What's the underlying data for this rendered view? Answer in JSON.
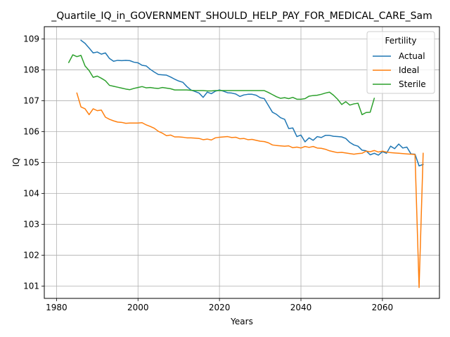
{
  "chart_data": {
    "type": "line",
    "title": "_Quartile_IQ_in_GOVERNMENT_SHOULD_HELP_PAY_FOR_MEDICAL_CARE_Sam",
    "xlabel": "Years",
    "ylabel": "IQ",
    "xlim": [
      1977,
      2074
    ],
    "ylim": [
      100.6,
      109.4
    ],
    "xticks": [
      1980,
      2000,
      2020,
      2040,
      2060
    ],
    "yticks": [
      101,
      102,
      103,
      104,
      105,
      106,
      107,
      108,
      109
    ],
    "grid": true,
    "legend": {
      "title": "Fertility",
      "placement": "top-right"
    },
    "series": [
      {
        "name": "Actual",
        "color": "#1f77b4",
        "points": [
          [
            1986,
            108.96
          ],
          [
            1987,
            108.86
          ],
          [
            1988,
            108.71
          ],
          [
            1989,
            108.55
          ],
          [
            1990,
            108.58
          ],
          [
            1991,
            108.51
          ],
          [
            1992,
            108.55
          ],
          [
            1993,
            108.37
          ],
          [
            1994,
            108.28
          ],
          [
            1995,
            108.31
          ],
          [
            1996,
            108.3
          ],
          [
            1997,
            108.31
          ],
          [
            1998,
            108.3
          ],
          [
            1999,
            108.25
          ],
          [
            2000,
            108.23
          ],
          [
            2001,
            108.15
          ],
          [
            2002,
            108.13
          ],
          [
            2003,
            108.02
          ],
          [
            2004,
            107.93
          ],
          [
            2005,
            107.85
          ],
          [
            2006,
            107.84
          ],
          [
            2007,
            107.83
          ],
          [
            2008,
            107.77
          ],
          [
            2009,
            107.7
          ],
          [
            2010,
            107.64
          ],
          [
            2011,
            107.6
          ],
          [
            2012,
            107.46
          ],
          [
            2013,
            107.35
          ],
          [
            2014,
            107.3
          ],
          [
            2015,
            107.25
          ],
          [
            2016,
            107.11
          ],
          [
            2017,
            107.28
          ],
          [
            2018,
            107.23
          ],
          [
            2019,
            107.31
          ],
          [
            2020,
            107.35
          ],
          [
            2021,
            107.31
          ],
          [
            2022,
            107.26
          ],
          [
            2023,
            107.25
          ],
          [
            2024,
            107.22
          ],
          [
            2025,
            107.14
          ],
          [
            2026,
            107.19
          ],
          [
            2027,
            107.21
          ],
          [
            2028,
            107.21
          ],
          [
            2029,
            107.18
          ],
          [
            2030,
            107.1
          ],
          [
            2031,
            107.07
          ],
          [
            2032,
            106.85
          ],
          [
            2033,
            106.63
          ],
          [
            2034,
            106.56
          ],
          [
            2035,
            106.45
          ],
          [
            2036,
            106.4
          ],
          [
            2037,
            106.1
          ],
          [
            2038,
            106.12
          ],
          [
            2039,
            105.84
          ],
          [
            2040,
            105.89
          ],
          [
            2041,
            105.67
          ],
          [
            2042,
            105.8
          ],
          [
            2043,
            105.72
          ],
          [
            2044,
            105.84
          ],
          [
            2045,
            105.81
          ],
          [
            2046,
            105.88
          ],
          [
            2047,
            105.88
          ],
          [
            2048,
            105.85
          ],
          [
            2049,
            105.84
          ],
          [
            2050,
            105.83
          ],
          [
            2051,
            105.78
          ],
          [
            2052,
            105.65
          ],
          [
            2053,
            105.57
          ],
          [
            2054,
            105.53
          ],
          [
            2055,
            105.4
          ],
          [
            2056,
            105.38
          ],
          [
            2057,
            105.25
          ],
          [
            2058,
            105.3
          ],
          [
            2059,
            105.24
          ],
          [
            2060,
            105.35
          ],
          [
            2061,
            105.3
          ],
          [
            2062,
            105.53
          ],
          [
            2063,
            105.45
          ],
          [
            2064,
            105.6
          ],
          [
            2065,
            105.47
          ],
          [
            2066,
            105.5
          ],
          [
            2067,
            105.28
          ],
          [
            2068,
            105.27
          ],
          [
            2069,
            104.89
          ],
          [
            2070,
            104.94
          ]
        ]
      },
      {
        "name": "Ideal",
        "color": "#ff7f0e",
        "points": [
          [
            1985,
            107.25
          ],
          [
            1986,
            106.8
          ],
          [
            1987,
            106.74
          ],
          [
            1988,
            106.55
          ],
          [
            1989,
            106.74
          ],
          [
            1990,
            106.68
          ],
          [
            1991,
            106.7
          ],
          [
            1992,
            106.47
          ],
          [
            1993,
            106.4
          ],
          [
            1994,
            106.35
          ],
          [
            1995,
            106.31
          ],
          [
            1996,
            106.3
          ],
          [
            1997,
            106.27
          ],
          [
            1998,
            106.28
          ],
          [
            1999,
            106.28
          ],
          [
            2000,
            106.28
          ],
          [
            2001,
            106.29
          ],
          [
            2002,
            106.22
          ],
          [
            2003,
            106.17
          ],
          [
            2004,
            106.11
          ],
          [
            2005,
            106.01
          ],
          [
            2006,
            105.95
          ],
          [
            2007,
            105.87
          ],
          [
            2008,
            105.89
          ],
          [
            2009,
            105.83
          ],
          [
            2010,
            105.83
          ],
          [
            2011,
            105.82
          ],
          [
            2012,
            105.8
          ],
          [
            2013,
            105.8
          ],
          [
            2014,
            105.79
          ],
          [
            2015,
            105.78
          ],
          [
            2016,
            105.74
          ],
          [
            2017,
            105.76
          ],
          [
            2018,
            105.73
          ],
          [
            2019,
            105.8
          ],
          [
            2020,
            105.82
          ],
          [
            2021,
            105.83
          ],
          [
            2022,
            105.84
          ],
          [
            2023,
            105.81
          ],
          [
            2024,
            105.82
          ],
          [
            2025,
            105.77
          ],
          [
            2026,
            105.78
          ],
          [
            2027,
            105.74
          ],
          [
            2028,
            105.75
          ],
          [
            2029,
            105.72
          ],
          [
            2030,
            105.69
          ],
          [
            2031,
            105.68
          ],
          [
            2032,
            105.64
          ],
          [
            2033,
            105.57
          ],
          [
            2034,
            105.55
          ],
          [
            2035,
            105.54
          ],
          [
            2036,
            105.53
          ],
          [
            2037,
            105.54
          ],
          [
            2038,
            105.48
          ],
          [
            2039,
            105.5
          ],
          [
            2040,
            105.47
          ],
          [
            2041,
            105.52
          ],
          [
            2042,
            105.49
          ],
          [
            2043,
            105.52
          ],
          [
            2044,
            105.47
          ],
          [
            2045,
            105.46
          ],
          [
            2046,
            105.43
          ],
          [
            2047,
            105.38
          ],
          [
            2048,
            105.35
          ],
          [
            2049,
            105.32
          ],
          [
            2050,
            105.33
          ],
          [
            2051,
            105.31
          ],
          [
            2052,
            105.29
          ],
          [
            2053,
            105.27
          ],
          [
            2054,
            105.29
          ],
          [
            2055,
            105.3
          ],
          [
            2056,
            105.37
          ],
          [
            2057,
            105.35
          ],
          [
            2058,
            105.39
          ],
          [
            2059,
            105.34
          ],
          [
            2060,
            105.37
          ],
          [
            2061,
            105.34
          ],
          [
            2062,
            105.32
          ],
          [
            2063,
            105.31
          ],
          [
            2064,
            105.3
          ],
          [
            2065,
            105.29
          ],
          [
            2066,
            105.28
          ],
          [
            2067,
            105.27
          ],
          [
            2068,
            105.26
          ],
          [
            2069,
            100.95
          ],
          [
            2070,
            105.3
          ]
        ]
      },
      {
        "name": "Sterile",
        "color": "#2ca02c",
        "points": [
          [
            1983,
            108.24
          ],
          [
            1984,
            108.49
          ],
          [
            1985,
            108.43
          ],
          [
            1986,
            108.47
          ],
          [
            1987,
            108.13
          ],
          [
            1988,
            107.98
          ],
          [
            1989,
            107.76
          ],
          [
            1990,
            107.8
          ],
          [
            1991,
            107.73
          ],
          [
            1992,
            107.65
          ],
          [
            1993,
            107.5
          ],
          [
            1994,
            107.47
          ],
          [
            1995,
            107.44
          ],
          [
            1996,
            107.41
          ],
          [
            1997,
            107.38
          ],
          [
            1998,
            107.36
          ],
          [
            1999,
            107.4
          ],
          [
            2000,
            107.43
          ],
          [
            2001,
            107.46
          ],
          [
            2002,
            107.42
          ],
          [
            2003,
            107.43
          ],
          [
            2004,
            107.41
          ],
          [
            2005,
            107.4
          ],
          [
            2006,
            107.43
          ],
          [
            2007,
            107.41
          ],
          [
            2008,
            107.39
          ],
          [
            2009,
            107.35
          ],
          [
            2010,
            107.35
          ],
          [
            2011,
            107.35
          ],
          [
            2012,
            107.35
          ],
          [
            2013,
            107.34
          ],
          [
            2014,
            107.33
          ],
          [
            2015,
            107.33
          ],
          [
            2016,
            107.33
          ],
          [
            2017,
            107.32
          ],
          [
            2018,
            107.32
          ],
          [
            2019,
            107.33
          ],
          [
            2020,
            107.33
          ],
          [
            2021,
            107.33
          ],
          [
            2022,
            107.33
          ],
          [
            2023,
            107.33
          ],
          [
            2024,
            107.33
          ],
          [
            2025,
            107.33
          ],
          [
            2026,
            107.33
          ],
          [
            2027,
            107.33
          ],
          [
            2028,
            107.33
          ],
          [
            2029,
            107.33
          ],
          [
            2030,
            107.33
          ],
          [
            2031,
            107.33
          ],
          [
            2032,
            107.27
          ],
          [
            2033,
            107.2
          ],
          [
            2034,
            107.13
          ],
          [
            2035,
            107.08
          ],
          [
            2036,
            107.1
          ],
          [
            2037,
            107.07
          ],
          [
            2038,
            107.11
          ],
          [
            2039,
            107.05
          ],
          [
            2040,
            107.05
          ],
          [
            2041,
            107.07
          ],
          [
            2042,
            107.15
          ],
          [
            2043,
            107.17
          ],
          [
            2044,
            107.18
          ],
          [
            2045,
            107.21
          ],
          [
            2046,
            107.25
          ],
          [
            2047,
            107.28
          ],
          [
            2048,
            107.18
          ],
          [
            2049,
            107.05
          ],
          [
            2050,
            106.88
          ],
          [
            2051,
            106.97
          ],
          [
            2052,
            106.86
          ],
          [
            2053,
            106.9
          ],
          [
            2054,
            106.92
          ],
          [
            2055,
            106.55
          ],
          [
            2056,
            106.62
          ],
          [
            2057,
            106.63
          ],
          [
            2058,
            107.08
          ]
        ]
      }
    ]
  }
}
